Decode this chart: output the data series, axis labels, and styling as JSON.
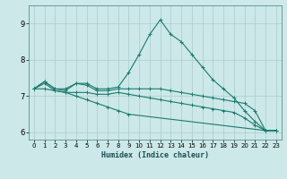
{
  "xlabel": "Humidex (Indice chaleur)",
  "ylabel": "",
  "bg_color": "#cce8e8",
  "grid_color": "#aacccc",
  "line_color": "#1a7a6e",
  "xlim": [
    -0.5,
    23.5
  ],
  "ylim": [
    5.8,
    9.5
  ],
  "xticks": [
    0,
    1,
    2,
    3,
    4,
    5,
    6,
    7,
    8,
    9,
    10,
    11,
    12,
    13,
    14,
    15,
    16,
    17,
    18,
    19,
    20,
    21,
    22,
    23
  ],
  "yticks": [
    6,
    7,
    8,
    9
  ],
  "line1_x": [
    0,
    1,
    2,
    3,
    4,
    5,
    6,
    7,
    8,
    9,
    10,
    11,
    12,
    13,
    14,
    15,
    16,
    17,
    18,
    19,
    20,
    21,
    22,
    23
  ],
  "line1_y": [
    7.2,
    7.4,
    7.2,
    7.2,
    7.35,
    7.35,
    7.2,
    7.2,
    7.25,
    7.65,
    8.15,
    8.7,
    9.1,
    8.7,
    8.5,
    8.15,
    7.8,
    7.45,
    7.2,
    6.95,
    6.6,
    6.3,
    6.05,
    6.05
  ],
  "line2_x": [
    0,
    1,
    2,
    3,
    4,
    5,
    6,
    7,
    8,
    9,
    10,
    11,
    12,
    13,
    14,
    15,
    16,
    17,
    18,
    19,
    20,
    21,
    22,
    23
  ],
  "line2_y": [
    7.2,
    7.4,
    7.2,
    7.15,
    7.35,
    7.3,
    7.15,
    7.15,
    7.2,
    7.2,
    7.2,
    7.2,
    7.2,
    7.15,
    7.1,
    7.05,
    7.0,
    6.95,
    6.9,
    6.85,
    6.8,
    6.6,
    6.05,
    6.05
  ],
  "line3_x": [
    0,
    1,
    2,
    3,
    4,
    5,
    6,
    7,
    8,
    9,
    10,
    11,
    12,
    13,
    14,
    15,
    16,
    17,
    18,
    19,
    20,
    21,
    22,
    23
  ],
  "line3_y": [
    7.2,
    7.35,
    7.15,
    7.1,
    7.1,
    7.1,
    7.05,
    7.05,
    7.1,
    7.05,
    7.0,
    6.95,
    6.9,
    6.85,
    6.8,
    6.75,
    6.7,
    6.65,
    6.6,
    6.55,
    6.4,
    6.2,
    6.05,
    6.05
  ],
  "line4_x": [
    0,
    1,
    2,
    3,
    4,
    5,
    6,
    7,
    8,
    9,
    22,
    23
  ],
  "line4_y": [
    7.2,
    7.2,
    7.15,
    7.1,
    7.0,
    6.9,
    6.8,
    6.7,
    6.6,
    6.5,
    6.05,
    6.05
  ],
  "marker": "+",
  "markersize": 3,
  "linewidth": 0.8,
  "tick_fontsize": 5,
  "xlabel_fontsize": 6
}
